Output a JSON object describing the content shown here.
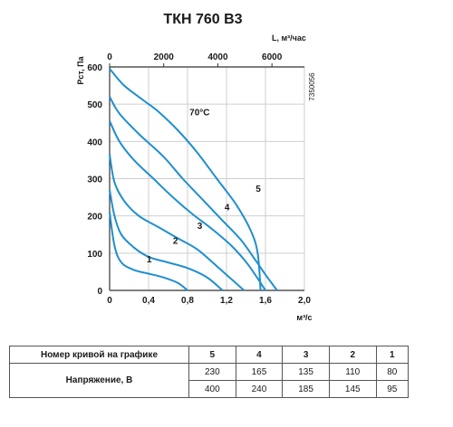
{
  "title": "ТКН 760 В3",
  "product_code": "7350056",
  "colors": {
    "curve": "#1f8fcf",
    "grid": "#cfcfcf",
    "axis": "#333333"
  },
  "chart_data": {
    "type": "line",
    "title": "ТКН 760 В3",
    "xlabel": "м³/с",
    "x2label": "L, м³/час",
    "ylabel": "Рст, Па",
    "xlim": [
      0,
      2.0
    ],
    "ylim": [
      0,
      600
    ],
    "x2lim": [
      0,
      7200
    ],
    "x_ticks": [
      "0",
      "0,4",
      "0,8",
      "1,2",
      "1,6",
      "2,0"
    ],
    "x2_ticks": [
      "0",
      "2000",
      "4000",
      "6000"
    ],
    "y_ticks": [
      "0",
      "100",
      "200",
      "300",
      "400",
      "500",
      "600"
    ],
    "grid": true,
    "annotations": [
      {
        "text": "70°C",
        "x": 0.82,
        "y": 470
      }
    ],
    "series": [
      {
        "name": "1",
        "points": [
          [
            0,
            210
          ],
          [
            0.05,
            120
          ],
          [
            0.12,
            75
          ],
          [
            0.25,
            55
          ],
          [
            0.4,
            45
          ],
          [
            0.55,
            35
          ],
          [
            0.7,
            20
          ],
          [
            0.8,
            0
          ]
        ]
      },
      {
        "name": "2",
        "points": [
          [
            0,
            270
          ],
          [
            0.05,
            200
          ],
          [
            0.12,
            150
          ],
          [
            0.25,
            115
          ],
          [
            0.4,
            90
          ],
          [
            0.6,
            75
          ],
          [
            0.8,
            60
          ],
          [
            1.0,
            35
          ],
          [
            1.16,
            0
          ]
        ]
      },
      {
        "name": "3",
        "points": [
          [
            0,
            365
          ],
          [
            0.05,
            290
          ],
          [
            0.15,
            240
          ],
          [
            0.3,
            200
          ],
          [
            0.5,
            170
          ],
          [
            0.7,
            140
          ],
          [
            0.9,
            110
          ],
          [
            1.1,
            65
          ],
          [
            1.38,
            0
          ]
        ]
      },
      {
        "name": "4",
        "points": [
          [
            0,
            455
          ],
          [
            0.1,
            400
          ],
          [
            0.25,
            350
          ],
          [
            0.45,
            300
          ],
          [
            0.65,
            250
          ],
          [
            0.85,
            205
          ],
          [
            1.05,
            165
          ],
          [
            1.25,
            120
          ],
          [
            1.42,
            70
          ],
          [
            1.6,
            0
          ]
        ]
      },
      {
        "name": "5",
        "points": [
          [
            0,
            520
          ],
          [
            0.1,
            475
          ],
          [
            0.3,
            420
          ],
          [
            0.55,
            360
          ],
          [
            0.75,
            300
          ],
          [
            0.95,
            245
          ],
          [
            1.15,
            190
          ],
          [
            1.35,
            135
          ],
          [
            1.5,
            80
          ],
          [
            1.62,
            35
          ],
          [
            1.72,
            0
          ]
        ]
      },
      {
        "name": "",
        "points": [
          [
            0,
            595
          ],
          [
            0.15,
            550
          ],
          [
            0.35,
            510
          ],
          [
            0.5,
            480
          ],
          [
            0.7,
            430
          ],
          [
            0.9,
            370
          ],
          [
            1.1,
            300
          ],
          [
            1.3,
            230
          ],
          [
            1.45,
            160
          ],
          [
            1.52,
            100
          ],
          [
            1.55,
            0
          ]
        ]
      }
    ]
  },
  "table": {
    "header_label": "Номер кривой на графике",
    "curve_numbers": [
      "5",
      "4",
      "3",
      "2",
      "1"
    ],
    "row_label": "Напряжение, В",
    "voltage_row1": [
      "230",
      "165",
      "135",
      "110",
      "80"
    ],
    "voltage_row2": [
      "400",
      "240",
      "185",
      "145",
      "95"
    ]
  }
}
